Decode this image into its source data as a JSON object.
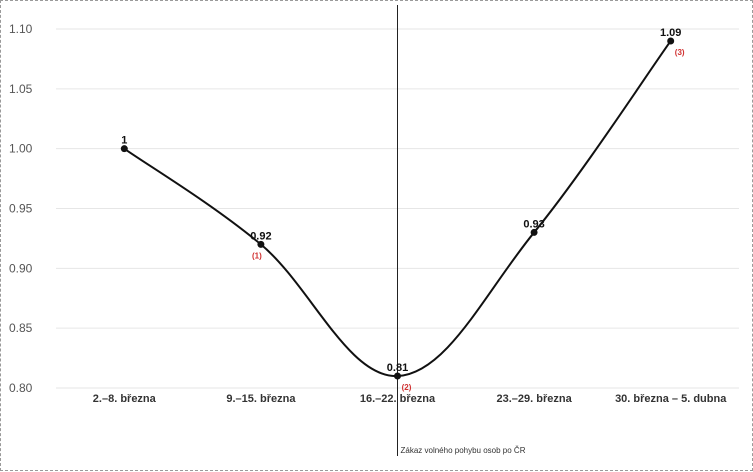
{
  "chart_data": {
    "type": "line",
    "categories": [
      "2.–8. března",
      "9.–15. března",
      "16.–22. března",
      "23.–29. března",
      "30. března – 5. dubna"
    ],
    "values": [
      1.0,
      0.92,
      0.81,
      0.93,
      1.09
    ],
    "data_labels": [
      "1",
      "0.92",
      "0.81",
      "0.93",
      "1.09"
    ],
    "notes": [
      "",
      "(1)",
      "(2)",
      "",
      "(3)"
    ],
    "y_ticks": [
      "0.80",
      "0.85",
      "0.90",
      "0.95",
      "1.00",
      "1.05",
      "1.10"
    ],
    "ylim": [
      0.8,
      1.1
    ],
    "grid": true,
    "line_color": "#111111",
    "grid_color": "#e6e6e6",
    "note_color": "#d03030",
    "annotation": {
      "category_index": 2,
      "text": "Zákaz volného pohybu osob po ČR"
    }
  }
}
